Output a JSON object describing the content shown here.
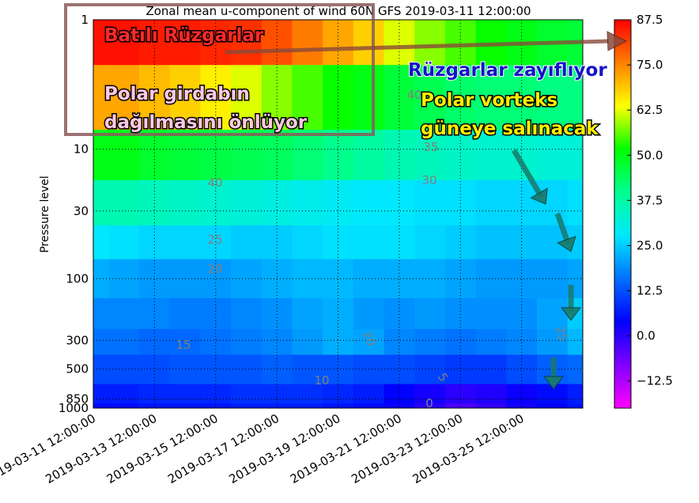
{
  "chart_data": {
    "type": "contour",
    "title": "Zonal mean u-component of wind 60N GFS 2019-03-11 12:00:00",
    "y_label": "Pressure level",
    "x": [
      "2019-03-11 12:00:00",
      "2019-03-12 12:00:00",
      "2019-03-13 12:00:00",
      "2019-03-14 12:00:00",
      "2019-03-15 12:00:00",
      "2019-03-16 12:00:00",
      "2019-03-17 12:00:00",
      "2019-03-18 12:00:00",
      "2019-03-19 12:00:00",
      "2019-03-20 12:00:00",
      "2019-03-21 12:00:00",
      "2019-03-22 12:00:00",
      "2019-03-23 12:00:00",
      "2019-03-24 12:00:00",
      "2019-03-25 12:00:00",
      "2019-03-26 12:00:00",
      "2019-03-27 12:00:00"
    ],
    "xticks": [
      "2019-03-11 12:00:00",
      "2019-03-13 12:00:00",
      "2019-03-15 12:00:00",
      "2019-03-17 12:00:00",
      "2019-03-19 12:00:00",
      "2019-03-21 12:00:00",
      "2019-03-23 12:00:00",
      "2019-03-25 12:00:00"
    ],
    "levels": [
      1,
      5,
      10,
      30,
      50,
      100,
      200,
      300,
      500,
      850,
      1000
    ],
    "z": [
      [
        86,
        86,
        85,
        85,
        84,
        83,
        80,
        76,
        72,
        68,
        62,
        58,
        55,
        52,
        50,
        48,
        47
      ],
      [
        72,
        72,
        70,
        68,
        65,
        62,
        58,
        55,
        52,
        50,
        47,
        45,
        43,
        42,
        42,
        41,
        41
      ],
      [
        50,
        50,
        48,
        47,
        46,
        45,
        44,
        42,
        40,
        38,
        36,
        35,
        34,
        33,
        33,
        32,
        32
      ],
      [
        36,
        36,
        35,
        34,
        33,
        32,
        31,
        30,
        29,
        28,
        28,
        27,
        27,
        26,
        26,
        26,
        27
      ],
      [
        28,
        27,
        26,
        26,
        26,
        25,
        25,
        26,
        27,
        27,
        27,
        26,
        25,
        24,
        24,
        24,
        25
      ],
      [
        22,
        21,
        20,
        20,
        20,
        21,
        22,
        23,
        23,
        22,
        22,
        22,
        21,
        20,
        20,
        20,
        21
      ],
      [
        18,
        18,
        18,
        17,
        17,
        18,
        19,
        21,
        22,
        20,
        19,
        20,
        19,
        19,
        19,
        21,
        25
      ],
      [
        16,
        16,
        15,
        15,
        16,
        17,
        18,
        20,
        22,
        21,
        18,
        17,
        16,
        17,
        18,
        20,
        23
      ],
      [
        12,
        12,
        12,
        13,
        13,
        13,
        14,
        13,
        13,
        12,
        12,
        11,
        10,
        10,
        12,
        14,
        15
      ],
      [
        7,
        7,
        8,
        8,
        8,
        9,
        9,
        9,
        8,
        7,
        4,
        2,
        0,
        1,
        3,
        5,
        7
      ],
      [
        5,
        5,
        6,
        6,
        6,
        7,
        7,
        7,
        6,
        5,
        3,
        0,
        -3,
        -1,
        2,
        4,
        6
      ]
    ],
    "ylim": [
      1000,
      1
    ],
    "yticks": [
      1,
      10,
      30,
      100,
      300,
      500,
      850,
      1000
    ],
    "log_y": true,
    "grid": true,
    "contour_labels": [
      40,
      35,
      40,
      30,
      25,
      20,
      15,
      10,
      5,
      0,
      20,
      25
    ],
    "clim": [
      -20,
      87.5
    ],
    "colorbar_ticks": [
      {
        "value": -12.5,
        "label": "−12.5"
      },
      {
        "value": 0,
        "label": "0.0"
      },
      12.5,
      {
        "value": 25,
        "label": "25.0"
      },
      37.5,
      {
        "value": 50,
        "label": "50.0"
      },
      62.5,
      {
        "value": 75,
        "label": "75.0"
      },
      87.5
    ],
    "colormap": [
      "#ff00ff",
      "#8000ff",
      "#0000ff",
      "#0070ff",
      "#00e8ff",
      "#00ff90",
      "#00ff00",
      "#ffff00",
      "#ff8000",
      "#ff0000"
    ],
    "annotations": [
      "Batılı Rüzgarlar",
      "Polar girdabın",
      "dağılmasını önlüyor",
      "Rüzgarlar zayıflıyor",
      "Polar vorteks",
      "güneye salınacak"
    ]
  }
}
